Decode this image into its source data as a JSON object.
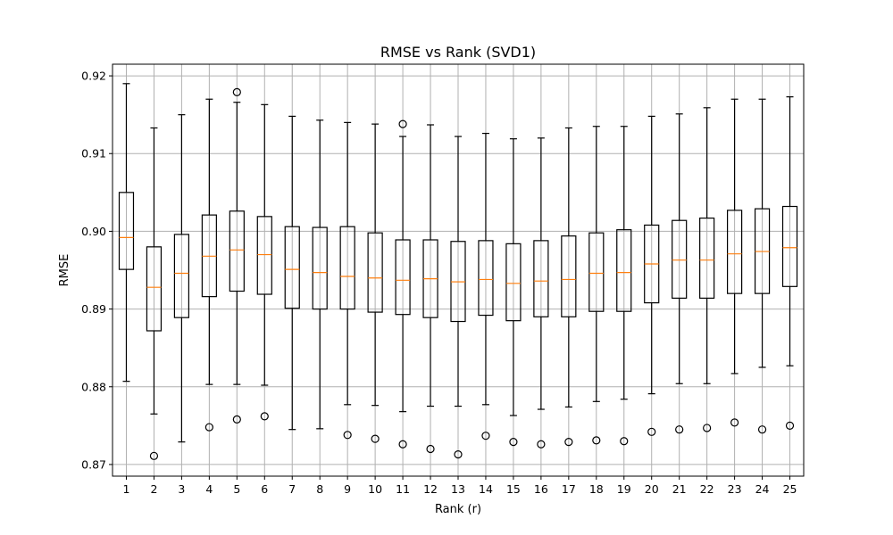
{
  "chart_data": {
    "type": "box",
    "title": "RMSE vs Rank (SVD1)",
    "xlabel": "Rank (r)",
    "ylabel": "RMSE",
    "ylim": [
      0.8685,
      0.9215
    ],
    "yticks": [
      0.87,
      0.88,
      0.89,
      0.9,
      0.91,
      0.92
    ],
    "ytick_labels": [
      "0.87",
      "0.88",
      "0.89",
      "0.90",
      "0.91",
      "0.92"
    ],
    "grid": true,
    "categories": [
      "1",
      "2",
      "3",
      "4",
      "5",
      "6",
      "7",
      "8",
      "9",
      "10",
      "11",
      "12",
      "13",
      "14",
      "15",
      "16",
      "17",
      "18",
      "19",
      "20",
      "21",
      "22",
      "23",
      "24",
      "25"
    ],
    "boxes": [
      {
        "whisker_low": 0.8807,
        "q1": 0.8951,
        "median": 0.8992,
        "q3": 0.905,
        "whisker_high": 0.919,
        "outliers": []
      },
      {
        "whisker_low": 0.8765,
        "q1": 0.8872,
        "median": 0.8928,
        "q3": 0.898,
        "whisker_high": 0.9133,
        "outliers": [
          0.8711
        ]
      },
      {
        "whisker_low": 0.8729,
        "q1": 0.8889,
        "median": 0.8946,
        "q3": 0.8996,
        "whisker_high": 0.915,
        "outliers": []
      },
      {
        "whisker_low": 0.8803,
        "q1": 0.8916,
        "median": 0.8968,
        "q3": 0.9021,
        "whisker_high": 0.917,
        "outliers": [
          0.8748
        ]
      },
      {
        "whisker_low": 0.8803,
        "q1": 0.8923,
        "median": 0.8976,
        "q3": 0.9026,
        "whisker_high": 0.9166,
        "outliers": [
          0.8758,
          0.9179
        ]
      },
      {
        "whisker_low": 0.8802,
        "q1": 0.8919,
        "median": 0.897,
        "q3": 0.9019,
        "whisker_high": 0.9163,
        "outliers": [
          0.8762
        ]
      },
      {
        "whisker_low": 0.8745,
        "q1": 0.8901,
        "median": 0.8951,
        "q3": 0.9006,
        "whisker_high": 0.9148,
        "outliers": []
      },
      {
        "whisker_low": 0.8746,
        "q1": 0.89,
        "median": 0.8947,
        "q3": 0.9005,
        "whisker_high": 0.9143,
        "outliers": []
      },
      {
        "whisker_low": 0.8777,
        "q1": 0.89,
        "median": 0.8942,
        "q3": 0.9006,
        "whisker_high": 0.914,
        "outliers": [
          0.8738
        ]
      },
      {
        "whisker_low": 0.8776,
        "q1": 0.8896,
        "median": 0.894,
        "q3": 0.8998,
        "whisker_high": 0.9138,
        "outliers": [
          0.8733
        ]
      },
      {
        "whisker_low": 0.8768,
        "q1": 0.8893,
        "median": 0.8937,
        "q3": 0.8989,
        "whisker_high": 0.9122,
        "outliers": [
          0.8726,
          0.9138
        ]
      },
      {
        "whisker_low": 0.8775,
        "q1": 0.8889,
        "median": 0.8939,
        "q3": 0.8989,
        "whisker_high": 0.9137,
        "outliers": [
          0.872
        ]
      },
      {
        "whisker_low": 0.8775,
        "q1": 0.8884,
        "median": 0.8935,
        "q3": 0.8987,
        "whisker_high": 0.9122,
        "outliers": [
          0.8713
        ]
      },
      {
        "whisker_low": 0.8777,
        "q1": 0.8892,
        "median": 0.8938,
        "q3": 0.8988,
        "whisker_high": 0.9126,
        "outliers": [
          0.8737
        ]
      },
      {
        "whisker_low": 0.8763,
        "q1": 0.8885,
        "median": 0.8933,
        "q3": 0.8984,
        "whisker_high": 0.9119,
        "outliers": [
          0.8729
        ]
      },
      {
        "whisker_low": 0.8771,
        "q1": 0.889,
        "median": 0.8936,
        "q3": 0.8988,
        "whisker_high": 0.912,
        "outliers": [
          0.8726
        ]
      },
      {
        "whisker_low": 0.8774,
        "q1": 0.889,
        "median": 0.8938,
        "q3": 0.8994,
        "whisker_high": 0.9133,
        "outliers": [
          0.8729
        ]
      },
      {
        "whisker_low": 0.8781,
        "q1": 0.8897,
        "median": 0.8946,
        "q3": 0.8998,
        "whisker_high": 0.9135,
        "outliers": [
          0.8731
        ]
      },
      {
        "whisker_low": 0.8784,
        "q1": 0.8897,
        "median": 0.8947,
        "q3": 0.9002,
        "whisker_high": 0.9135,
        "outliers": [
          0.873
        ]
      },
      {
        "whisker_low": 0.8791,
        "q1": 0.8908,
        "median": 0.8958,
        "q3": 0.9008,
        "whisker_high": 0.9148,
        "outliers": [
          0.8742
        ]
      },
      {
        "whisker_low": 0.8804,
        "q1": 0.8914,
        "median": 0.8963,
        "q3": 0.9014,
        "whisker_high": 0.9151,
        "outliers": [
          0.8745
        ]
      },
      {
        "whisker_low": 0.8804,
        "q1": 0.8914,
        "median": 0.8963,
        "q3": 0.9017,
        "whisker_high": 0.9159,
        "outliers": [
          0.8747
        ]
      },
      {
        "whisker_low": 0.8817,
        "q1": 0.892,
        "median": 0.8971,
        "q3": 0.9027,
        "whisker_high": 0.917,
        "outliers": [
          0.8754
        ]
      },
      {
        "whisker_low": 0.8825,
        "q1": 0.892,
        "median": 0.8974,
        "q3": 0.9029,
        "whisker_high": 0.917,
        "outliers": [
          0.8745
        ]
      },
      {
        "whisker_low": 0.8827,
        "q1": 0.8929,
        "median": 0.8979,
        "q3": 0.9032,
        "whisker_high": 0.9173,
        "outliers": [
          0.875
        ]
      }
    ],
    "colors": {
      "box": "#000000",
      "median": "#ff7f0e",
      "grid": "#b0b0b0"
    }
  }
}
